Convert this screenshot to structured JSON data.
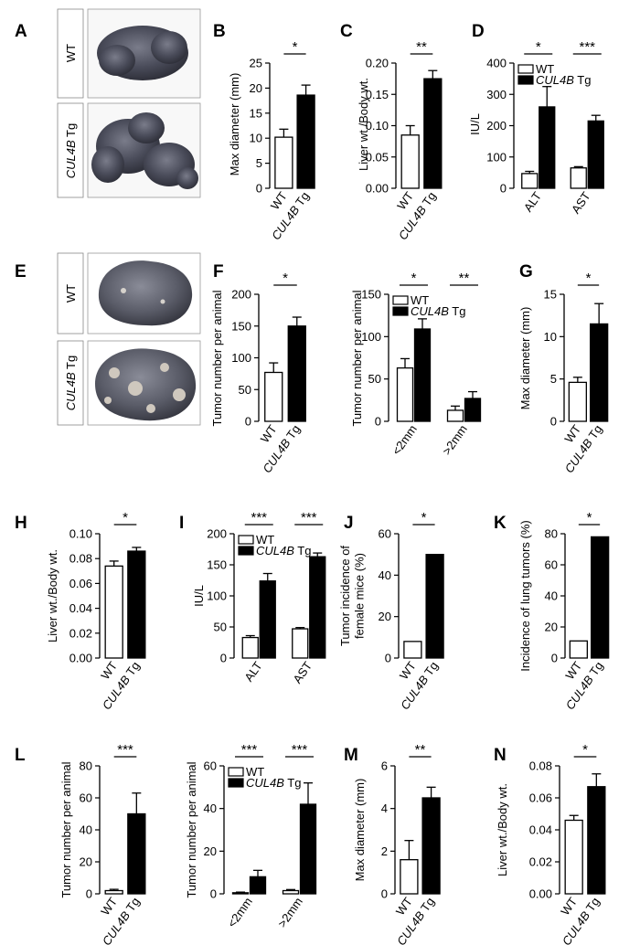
{
  "figure": {
    "photo_rows": [
      {
        "panel": "A",
        "rows": [
          {
            "label": "WT",
            "italic": false
          },
          {
            "label_italic": "CUL4B",
            "label_rest": " Tg"
          }
        ]
      },
      {
        "panel": "E",
        "rows": [
          {
            "label": "WT",
            "italic": false
          },
          {
            "label_italic": "CUL4B",
            "label_rest": " Tg"
          }
        ]
      }
    ],
    "colors": {
      "wt": "#ffffff",
      "tg": "#000000",
      "stroke": "#000000"
    },
    "group_labels": {
      "wt": "WT",
      "tg_italic": "CUL4B",
      "tg_rest": " Tg"
    }
  },
  "chart_data": [
    {
      "panel": "B",
      "type": "bar",
      "categories": [
        "WT",
        "CUL4B Tg"
      ],
      "values": [
        10.2,
        18.6
      ],
      "errors": [
        1.6,
        2.0
      ],
      "ylabel": "Max diameter (mm)",
      "ylim": [
        0,
        25
      ],
      "yticks": [
        "0",
        "5",
        "10",
        "15",
        "20",
        "25"
      ],
      "ytick_values": [
        0,
        5,
        10,
        15,
        20,
        25
      ],
      "significance": [
        "*"
      ]
    },
    {
      "panel": "C",
      "type": "bar",
      "categories": [
        "WT",
        "CUL4B Tg"
      ],
      "values": [
        0.085,
        0.175
      ],
      "errors": [
        0.015,
        0.013
      ],
      "ylabel": "Liver wt./Body wt.",
      "ylim": [
        0,
        0.2
      ],
      "yticks": [
        "0.00",
        "0.05",
        "0.10",
        "0.15",
        "0.20"
      ],
      "ytick_values": [
        0,
        0.05,
        0.1,
        0.15,
        0.2
      ],
      "significance": [
        "**"
      ]
    },
    {
      "panel": "D",
      "type": "bar",
      "categories": [
        "ALT",
        "AST"
      ],
      "series": [
        {
          "name": "WT",
          "values": [
            47,
            65
          ],
          "errors": [
            7,
            4
          ]
        },
        {
          "name": "CUL4B Tg",
          "values": [
            260,
            215
          ],
          "errors": [
            65,
            18
          ]
        }
      ],
      "ylabel": "IU/L",
      "ylim": [
        0,
        400
      ],
      "yticks": [
        "0",
        "100",
        "200",
        "300",
        "400"
      ],
      "ytick_values": [
        0,
        100,
        200,
        300,
        400
      ],
      "significance": [
        "*",
        "***"
      ],
      "legend": "top-left"
    },
    {
      "panel": "F1",
      "type": "bar",
      "categories": [
        "WT",
        "CUL4B Tg"
      ],
      "values": [
        77,
        150
      ],
      "errors": [
        15,
        14
      ],
      "ylabel": "Tumor number per animal",
      "ylim": [
        0,
        200
      ],
      "yticks": [
        "0",
        "50",
        "100",
        "150",
        "200"
      ],
      "ytick_values": [
        0,
        50,
        100,
        150,
        200
      ],
      "significance": [
        "*"
      ]
    },
    {
      "panel": "F2",
      "type": "bar",
      "categories": [
        "<2mm",
        ">2mm"
      ],
      "series": [
        {
          "name": "WT",
          "values": [
            63,
            13
          ],
          "errors": [
            11,
            5
          ]
        },
        {
          "name": "CUL4B Tg",
          "values": [
            109,
            27
          ],
          "errors": [
            12,
            8
          ]
        }
      ],
      "ylabel": "Tumor number per animal",
      "ylim": [
        0,
        150
      ],
      "yticks": [
        "0",
        "50",
        "100",
        "150"
      ],
      "ytick_values": [
        0,
        50,
        100,
        150
      ],
      "significance": [
        "*",
        "**"
      ],
      "legend": "top-left"
    },
    {
      "panel": "G",
      "type": "bar",
      "categories": [
        "WT",
        "CUL4B Tg"
      ],
      "values": [
        4.6,
        11.5
      ],
      "errors": [
        0.6,
        2.4
      ],
      "ylabel": "Max diameter (mm)",
      "ylim": [
        0,
        15
      ],
      "yticks": [
        "0",
        "5",
        "10",
        "15"
      ],
      "ytick_values": [
        0,
        5,
        10,
        15
      ],
      "significance": [
        "*"
      ]
    },
    {
      "panel": "H",
      "type": "bar",
      "categories": [
        "WT",
        "CUL4B Tg"
      ],
      "values": [
        0.074,
        0.086
      ],
      "errors": [
        0.004,
        0.003
      ],
      "ylabel": "Liver wt./Body wt.",
      "ylim": [
        0,
        0.1
      ],
      "yticks": [
        "0.00",
        "0.02",
        "0.04",
        "0.06",
        "0.08",
        "0.10"
      ],
      "ytick_values": [
        0,
        0.02,
        0.04,
        0.06,
        0.08,
        0.1
      ],
      "significance": [
        "*"
      ]
    },
    {
      "panel": "I",
      "type": "bar",
      "categories": [
        "ALT",
        "AST"
      ],
      "series": [
        {
          "name": "WT",
          "values": [
            33,
            47
          ],
          "errors": [
            3,
            2
          ]
        },
        {
          "name": "CUL4B Tg",
          "values": [
            124,
            163
          ],
          "errors": [
            12,
            6
          ]
        }
      ],
      "ylabel": "IU/L",
      "ylim": [
        0,
        200
      ],
      "yticks": [
        "0",
        "50",
        "100",
        "150",
        "200"
      ],
      "ytick_values": [
        0,
        50,
        100,
        150,
        200
      ],
      "significance": [
        "***",
        "***"
      ],
      "legend": "top-left"
    },
    {
      "panel": "J",
      "type": "bar",
      "categories": [
        "WT",
        "CUL4B Tg"
      ],
      "values": [
        8,
        50
      ],
      "errors": [
        0,
        0
      ],
      "ylabel": "Tumor incidence of female mice (%)",
      "ylim": [
        0,
        60
      ],
      "yticks": [
        "0",
        "20",
        "40",
        "60"
      ],
      "ytick_values": [
        0,
        20,
        40,
        60
      ],
      "significance": [
        "*"
      ]
    },
    {
      "panel": "K",
      "type": "bar",
      "categories": [
        "WT",
        "CUL4B Tg"
      ],
      "values": [
        11,
        78
      ],
      "errors": [
        0,
        0
      ],
      "ylabel": "Incidence of lung tumors (%)",
      "ylim": [
        0,
        80
      ],
      "yticks": [
        "0",
        "20",
        "40",
        "60",
        "80"
      ],
      "ytick_values": [
        0,
        20,
        40,
        60,
        80
      ],
      "significance": [
        "*"
      ]
    },
    {
      "panel": "L1",
      "type": "bar",
      "categories": [
        "WT",
        "CUL4B Tg"
      ],
      "values": [
        2,
        50
      ],
      "errors": [
        0.8,
        13
      ],
      "ylabel": "Tumor number per animal",
      "ylim": [
        0,
        80
      ],
      "yticks": [
        "0",
        "20",
        "40",
        "60",
        "80"
      ],
      "ytick_values": [
        0,
        20,
        40,
        60,
        80
      ],
      "significance": [
        "***"
      ]
    },
    {
      "panel": "L2",
      "type": "bar",
      "categories": [
        "<2mm",
        ">2mm"
      ],
      "series": [
        {
          "name": "WT",
          "values": [
            0.5,
            1.5
          ],
          "errors": [
            0.3,
            0.5
          ]
        },
        {
          "name": "CUL4B Tg",
          "values": [
            8,
            42
          ],
          "errors": [
            3,
            10
          ]
        }
      ],
      "ylabel": "Tumor number per animal",
      "ylim": [
        0,
        60
      ],
      "yticks": [
        "0",
        "20",
        "40",
        "60"
      ],
      "ytick_values": [
        0,
        20,
        40,
        60
      ],
      "significance": [
        "***",
        "***"
      ],
      "legend": "top-left"
    },
    {
      "panel": "M",
      "type": "bar",
      "categories": [
        "WT",
        "CUL4B Tg"
      ],
      "values": [
        1.6,
        4.5
      ],
      "errors": [
        0.9,
        0.5
      ],
      "ylabel": "Max diameter (mm)",
      "ylim": [
        0,
        6
      ],
      "yticks": [
        "0",
        "2",
        "4",
        "6"
      ],
      "ytick_values": [
        0,
        2,
        4,
        6
      ],
      "significance": [
        "**"
      ]
    },
    {
      "panel": "N",
      "type": "bar",
      "categories": [
        "WT",
        "CUL4B Tg"
      ],
      "values": [
        0.046,
        0.067
      ],
      "errors": [
        0.003,
        0.008
      ],
      "ylabel": "Liver wt./Body wt.",
      "ylim": [
        0,
        0.08
      ],
      "yticks": [
        "0.00",
        "0.02",
        "0.04",
        "0.06",
        "0.08"
      ],
      "ytick_values": [
        0,
        0.02,
        0.04,
        0.06,
        0.08
      ],
      "significance": [
        "*"
      ]
    }
  ]
}
